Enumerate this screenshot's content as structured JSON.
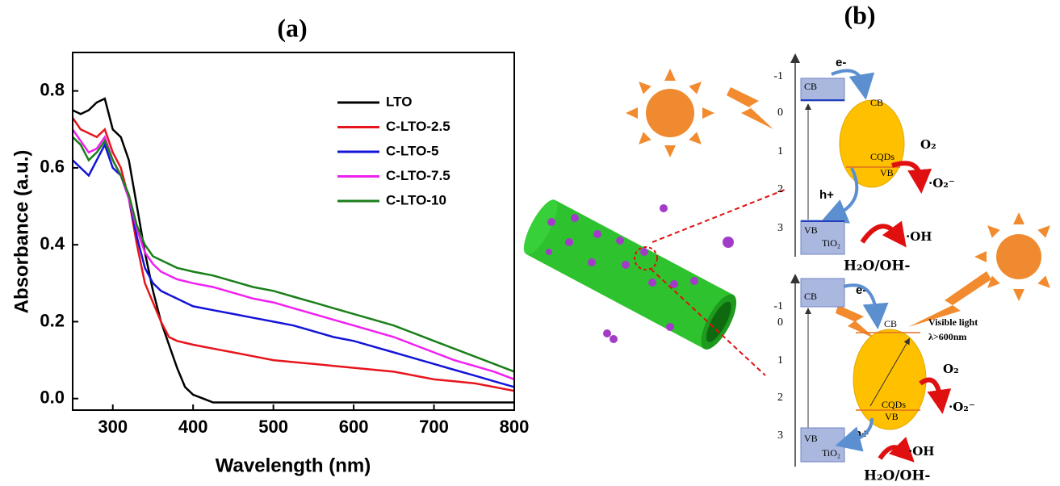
{
  "chart_data": {
    "type": "line",
    "title": "(a)",
    "x_label": "Wavelength (nm)",
    "y_label": "Absorbance (a.u.)",
    "x": [
      250,
      260,
      270,
      280,
      290,
      300,
      310,
      320,
      330,
      340,
      350,
      360,
      370,
      380,
      390,
      400,
      425,
      450,
      475,
      500,
      525,
      550,
      575,
      600,
      625,
      650,
      675,
      700,
      725,
      750,
      775,
      800
    ],
    "series": [
      {
        "name": "LTO",
        "color": "#000000",
        "values": [
          0.75,
          0.74,
          0.75,
          0.77,
          0.78,
          0.7,
          0.68,
          0.62,
          0.5,
          0.38,
          0.28,
          0.2,
          0.14,
          0.08,
          0.03,
          0.01,
          -0.01,
          -0.01,
          -0.01,
          -0.01,
          -0.01,
          -0.01,
          -0.01,
          -0.01,
          -0.01,
          -0.01,
          -0.01,
          -0.01,
          -0.01,
          -0.01,
          -0.01,
          -0.01
        ]
      },
      {
        "name": "C-LTO-2.5",
        "color": "#e8141b",
        "values": [
          0.73,
          0.7,
          0.69,
          0.68,
          0.7,
          0.64,
          0.6,
          0.52,
          0.4,
          0.3,
          0.25,
          0.2,
          0.16,
          0.15,
          0.145,
          0.14,
          0.13,
          0.12,
          0.11,
          0.1,
          0.095,
          0.09,
          0.085,
          0.08,
          0.075,
          0.07,
          0.06,
          0.05,
          0.045,
          0.04,
          0.03,
          0.02
        ]
      },
      {
        "name": "C-LTO-5",
        "color": "#1414d8",
        "values": [
          0.62,
          0.6,
          0.58,
          0.62,
          0.66,
          0.6,
          0.58,
          0.52,
          0.42,
          0.34,
          0.3,
          0.28,
          0.27,
          0.26,
          0.25,
          0.24,
          0.23,
          0.22,
          0.21,
          0.2,
          0.19,
          0.175,
          0.16,
          0.15,
          0.135,
          0.12,
          0.105,
          0.09,
          0.075,
          0.06,
          0.045,
          0.03
        ]
      },
      {
        "name": "C-LTO-7.5",
        "color": "#f020f0",
        "values": [
          0.7,
          0.67,
          0.64,
          0.65,
          0.68,
          0.62,
          0.58,
          0.52,
          0.44,
          0.38,
          0.35,
          0.33,
          0.32,
          0.31,
          0.305,
          0.3,
          0.29,
          0.275,
          0.26,
          0.25,
          0.235,
          0.22,
          0.205,
          0.19,
          0.175,
          0.16,
          0.14,
          0.12,
          0.1,
          0.085,
          0.07,
          0.05
        ]
      },
      {
        "name": "C-LTO-10",
        "color": "#1a7f1a",
        "values": [
          0.68,
          0.66,
          0.62,
          0.64,
          0.67,
          0.62,
          0.58,
          0.53,
          0.45,
          0.4,
          0.37,
          0.36,
          0.35,
          0.34,
          0.335,
          0.33,
          0.32,
          0.305,
          0.29,
          0.28,
          0.265,
          0.25,
          0.235,
          0.22,
          0.205,
          0.19,
          0.17,
          0.15,
          0.13,
          0.11,
          0.09,
          0.07
        ]
      }
    ],
    "xlim": [
      250,
      800
    ],
    "xticks": [
      300,
      400,
      500,
      600,
      700,
      800
    ],
    "ylim": [
      -0.03,
      0.9
    ],
    "yticks": [
      {
        "value": 0,
        "label": "0.0"
      },
      0.2,
      0.4,
      0.6,
      0.8
    ]
  },
  "diagram": {
    "label": "(b)",
    "top_panel": {
      "levels": [
        "-1",
        "0",
        "1",
        "2",
        "3"
      ],
      "cb_left": "CB",
      "electron": "e-",
      "cb_right": "CB",
      "cqds": "CQDs",
      "vb_right": "VB",
      "oxygen": "O₂",
      "superoxide": "·O₂⁻",
      "hole": "h+",
      "vb_left": "VB",
      "tio2": "TiO₂",
      "hydroxyl": "·OH",
      "water": "H₂O/OH-"
    },
    "bottom_panel": {
      "levels": [
        "-1",
        "0",
        "1",
        "2",
        "3"
      ],
      "cb_left": "CB",
      "electron": "e-",
      "light": "Visible light",
      "wavelength": "λ>600nm",
      "cb_right": "CB",
      "cqds": "CQDs",
      "vb_right": "VB",
      "oxygen": "O₂",
      "superoxide": "·O₂⁻",
      "hole": "h+",
      "vb_left": "VB",
      "tio2": "TiO₂",
      "hydroxyl": "·OH",
      "water": "H₂O/OH-"
    }
  }
}
